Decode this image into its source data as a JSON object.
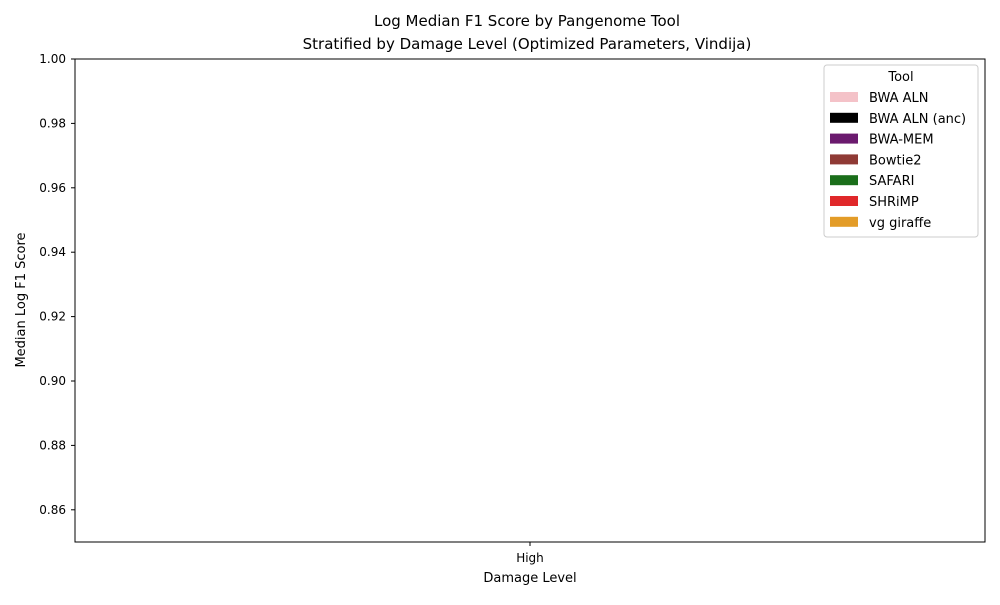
{
  "chart_data": {
    "type": "bar",
    "title": "Log Median F1 Score by Pangenome Tool",
    "subtitle": "Stratified by Damage Level (Optimized Parameters, Vindija)",
    "xlabel": "Damage Level",
    "ylabel": "Median Log F1 Score",
    "categories": [
      "High"
    ],
    "ylim": [
      0.85,
      1.0
    ],
    "yticks": [
      "0.86",
      "0.88",
      "0.90",
      "0.92",
      "0.94",
      "0.96",
      "0.98",
      "1.00"
    ],
    "ytick_values": [
      0.86,
      0.88,
      0.9,
      0.92,
      0.94,
      0.96,
      0.98,
      1.0
    ],
    "grid": false,
    "legend": {
      "title": "Tool",
      "placement": "top-right",
      "entries": [
        {
          "label": "BWA ALN",
          "color": "#f4c2c8"
        },
        {
          "label": "BWA ALN (anc)",
          "color": "#000000"
        },
        {
          "label": "BWA-MEM",
          "color": "#6b1a6e"
        },
        {
          "label": "Bowtie2",
          "color": "#8f3a35"
        },
        {
          "label": "SAFARI",
          "color": "#1a6e1a"
        },
        {
          "label": "SHRiMP",
          "color": "#e0282a"
        },
        {
          "label": "vg giraffe",
          "color": "#e39c28"
        }
      ]
    },
    "series": [
      {
        "name": "BWA ALN",
        "values": [
          null
        ]
      },
      {
        "name": "BWA ALN (anc)",
        "values": [
          null
        ]
      },
      {
        "name": "BWA-MEM",
        "values": [
          null
        ]
      },
      {
        "name": "Bowtie2",
        "values": [
          null
        ]
      },
      {
        "name": "SAFARI",
        "values": [
          null
        ]
      },
      {
        "name": "SHRiMP",
        "values": [
          null
        ]
      },
      {
        "name": "vg giraffe",
        "values": [
          null
        ]
      }
    ]
  }
}
